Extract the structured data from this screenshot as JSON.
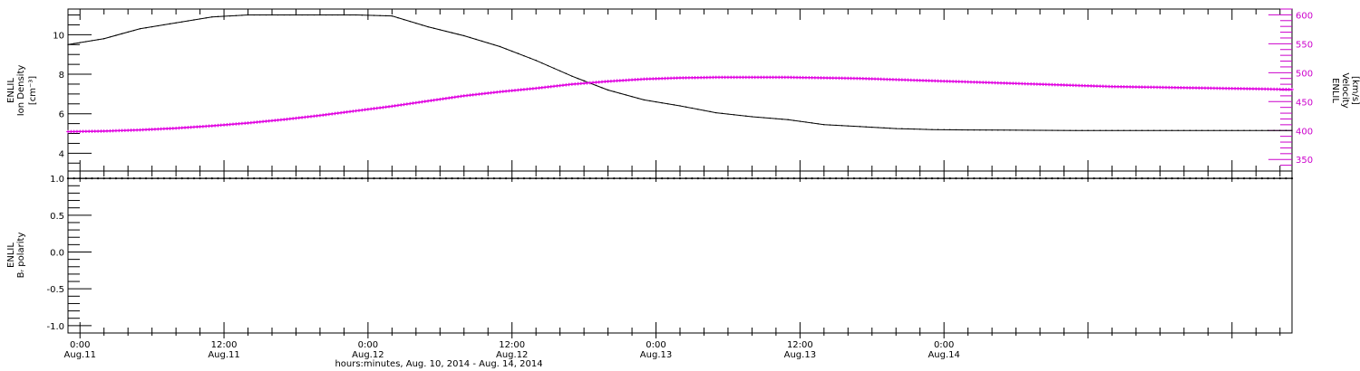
{
  "chart_data": [
    {
      "type": "line",
      "panel": "top",
      "ylabel_line1": "ENLIL",
      "ylabel_line2": "Ion Density",
      "ylabel_unit": "[cm⁻³]",
      "y_ticks": [
        4,
        6,
        8,
        10
      ],
      "y_tick_labels": [
        "4",
        "6",
        "8",
        "10"
      ],
      "ylim": [
        3.1,
        11.3
      ],
      "y2label_line1": "ENLIL",
      "y2label_line2": "Velocity",
      "y2label_unit": "[km/s]",
      "y2_ticks": [
        350,
        400,
        450,
        500,
        550,
        600
      ],
      "y2_tick_labels": [
        "350",
        "400",
        "450",
        "500",
        "550",
        "600"
      ],
      "y2lim": [
        330,
        610
      ],
      "series": [
        {
          "axis": "left",
          "color": "#000000",
          "x": [
            0,
            3,
            6,
            9,
            12,
            15,
            18,
            21,
            24,
            27,
            30,
            33,
            36,
            39,
            42,
            45,
            48,
            51,
            54,
            57,
            60,
            63,
            66,
            69,
            72,
            75,
            78,
            81,
            84,
            87,
            90,
            93,
            96,
            99,
            102
          ],
          "y": [
            9.5,
            9.8,
            10.3,
            10.6,
            10.9,
            11.0,
            11.0,
            11.0,
            11.0,
            10.95,
            10.4,
            9.95,
            9.4,
            8.7,
            7.9,
            7.2,
            6.7,
            6.4,
            6.05,
            5.85,
            5.7,
            5.45,
            5.35,
            5.25,
            5.2,
            5.18,
            5.17,
            5.16,
            5.15,
            5.15,
            5.15,
            5.15,
            5.15,
            5.15,
            5.15
          ]
        },
        {
          "axis": "right",
          "color": "#e000e0",
          "x": [
            0,
            3,
            6,
            9,
            12,
            15,
            18,
            21,
            24,
            27,
            30,
            33,
            36,
            39,
            42,
            45,
            48,
            51,
            54,
            57,
            60,
            63,
            66,
            69,
            72,
            75,
            78,
            81,
            84,
            87,
            90,
            93,
            96,
            99,
            102
          ],
          "y": [
            398,
            399,
            401,
            404,
            408,
            413,
            419,
            426,
            434,
            442,
            451,
            460,
            467,
            473,
            480,
            485,
            489,
            491,
            492,
            492,
            492,
            491,
            490,
            488,
            486,
            484,
            482,
            480,
            478,
            476,
            475,
            474,
            473,
            472,
            471
          ]
        }
      ]
    },
    {
      "type": "line",
      "panel": "bottom",
      "ylabel_line1": "ENLIL",
      "ylabel_line2": "Bᵣ polarity",
      "y_ticks": [
        -1.0,
        -0.5,
        0.0,
        0.5,
        1.0
      ],
      "y_tick_labels": [
        "-1.0",
        "-0.5",
        "0.0",
        "0.5",
        "1.0"
      ],
      "ylim": [
        -1.1,
        1.1
      ],
      "series": [
        {
          "axis": "left",
          "color": "#000000",
          "x": [
            0,
            102
          ],
          "y": [
            1.0,
            1.0
          ]
        }
      ]
    }
  ],
  "x_axis": {
    "unit": "hours since 2014-08-10 23:00",
    "xlim": [
      0,
      102
    ],
    "major_ticks": [
      1,
      13,
      25,
      37,
      49,
      61,
      73,
      85,
      97
    ],
    "time_labels": [
      "0:00",
      "12:00",
      "0:00",
      "12:00",
      "0:00",
      "12:00",
      "0:00"
    ],
    "date_labels": [
      "Aug.11",
      "Aug.11",
      "Aug.12",
      "Aug.12",
      "Aug.13",
      "Aug.13",
      "Aug.14"
    ],
    "label_ticks": [
      1,
      13,
      25,
      37,
      49,
      61,
      73
    ],
    "xlabel": "hours:minutes, Aug. 10, 2014 - Aug. 14, 2014"
  }
}
